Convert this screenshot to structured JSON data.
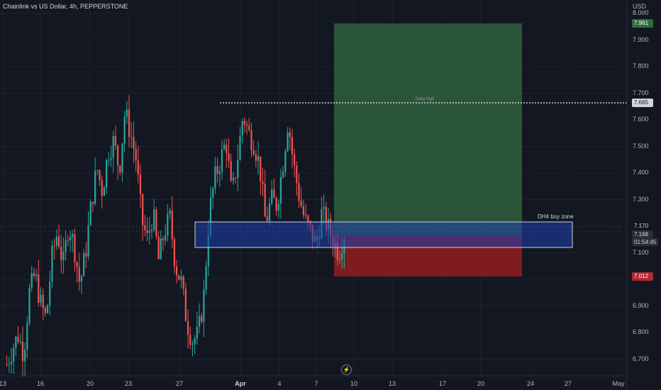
{
  "header": {
    "title": "Chainlink vs US Dollar, 4h, PEPPERSTONE"
  },
  "price_axis": {
    "currency": "USD",
    "ticks": [
      "8.000",
      "7.900",
      "7.800",
      "7.700",
      "7.600",
      "7.500",
      "7.400",
      "7.300",
      "7.100",
      "7.000",
      "6.900",
      "6.800",
      "6.700"
    ]
  },
  "time_axis": {
    "ticks": [
      {
        "label": "13",
        "bold": false
      },
      {
        "label": "16",
        "bold": false
      },
      {
        "label": "20",
        "bold": false
      },
      {
        "label": "23",
        "bold": false
      },
      {
        "label": "27",
        "bold": false
      },
      {
        "label": "Apr",
        "bold": true
      },
      {
        "label": "4",
        "bold": false
      },
      {
        "label": "7",
        "bold": false
      },
      {
        "label": "10",
        "bold": false
      },
      {
        "label": "13",
        "bold": false
      },
      {
        "label": "17",
        "bold": false
      },
      {
        "label": "20",
        "bold": false
      },
      {
        "label": "24",
        "bold": false
      },
      {
        "label": "27",
        "bold": false
      },
      {
        "label": "May",
        "bold": false
      }
    ]
  },
  "price_tags": {
    "target": "7.961",
    "daily_high": "7.665",
    "level_upper": "7.170",
    "current_price": "7.168",
    "countdown": "01:54:45",
    "stop": "7.012"
  },
  "annotations": {
    "daily_high_label": "Daily high",
    "zone_label": "DH4 buy zone"
  },
  "colors": {
    "background": "#131722",
    "up": "#26a69a",
    "down": "#ef5350",
    "profit_zone": "#2e5b3b",
    "loss_zone": "#8c1d1f",
    "buy_zone": "#1e3a8a"
  },
  "icons": {
    "replay": "lightning-icon"
  },
  "chart_data": {
    "type": "candlestick",
    "symbol": "Chainlink vs US Dollar",
    "interval": "4h",
    "source": "PEPPERSTONE",
    "ylim": [
      6.66,
      8.02
    ],
    "levels": {
      "daily_high": 7.665,
      "target": 7.961,
      "stop": 7.012,
      "current": 7.168
    },
    "buy_zone": [
      7.115,
      7.21
    ],
    "waypoints": [
      6.68,
      6.74,
      6.79,
      6.72,
      6.95,
      7.02,
      6.91,
      6.85,
      7.08,
      7.18,
      7.05,
      7.21,
      7.12,
      6.98,
      7.1,
      7.28,
      7.42,
      7.33,
      7.48,
      7.52,
      7.41,
      7.63,
      7.55,
      7.45,
      7.22,
      7.15,
      7.25,
      7.07,
      7.18,
      7.23,
      7.05,
      6.99,
      6.84,
      6.77,
      6.79,
      6.93,
      7.25,
      7.38,
      7.45,
      7.52,
      7.31,
      7.45,
      7.62,
      7.55,
      7.51,
      7.42,
      7.21,
      7.3,
      7.28,
      7.42,
      7.6,
      7.43,
      7.31,
      7.22,
      7.18,
      7.13,
      7.25,
      7.2,
      7.15,
      7.1,
      7.17
    ]
  }
}
